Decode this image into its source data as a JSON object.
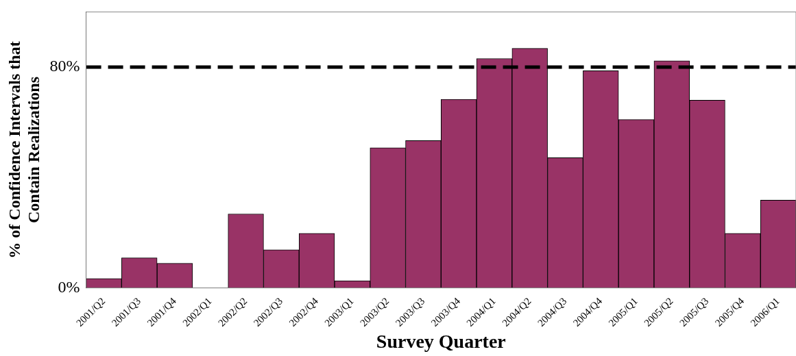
{
  "chart_data": {
    "type": "bar",
    "xlabel": "Survey Quarter",
    "ylabel": "% of Confidence Intervals that\nContain Realizations",
    "categories": [
      "2001/Q2",
      "2001/Q3",
      "2001/Q4",
      "2002/Q1",
      "2002/Q2",
      "2002/Q3",
      "2002/Q4",
      "2003/Q1",
      "2003/Q2",
      "2003/Q3",
      "2003/Q4",
      "2004/Q1",
      "2004/Q2",
      "2004/Q3",
      "2004/Q4",
      "2005/Q1",
      "2005/Q2",
      "2005/Q3",
      "2005/Q4",
      "2006/Q1"
    ],
    "values": [
      3.4,
      10.9,
      8.9,
      0,
      26.8,
      13.8,
      19.8,
      2.6,
      50.8,
      53.4,
      68.3,
      83.1,
      86.8,
      47.2,
      78.7,
      61.0,
      82.3,
      68.0,
      19.8,
      31.8
    ],
    "color": "#993366",
    "ylim": [
      0,
      100
    ],
    "yticks": [
      {
        "value": 0,
        "label": "0%"
      },
      {
        "value": 80,
        "label": "80%"
      }
    ],
    "ref_lines": [
      {
        "axis": "y",
        "value": 80,
        "color": "#000000",
        "line_style": "dashed"
      }
    ],
    "grid": false,
    "legend": false
  }
}
